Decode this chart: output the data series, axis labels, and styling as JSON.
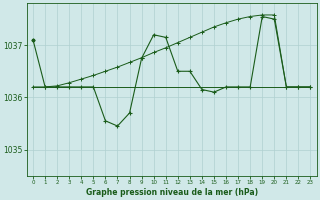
{
  "title": "Graphe pression niveau de la mer (hPa)",
  "bg": "#d0e8e8",
  "grid_color": "#b0d0d0",
  "lc": "#1a5c1a",
  "xlim": [
    -0.5,
    23.5
  ],
  "ylim": [
    1034.5,
    1037.8
  ],
  "yticks": [
    1035,
    1036,
    1037
  ],
  "xticks": [
    0,
    1,
    2,
    3,
    4,
    5,
    6,
    7,
    8,
    9,
    10,
    11,
    12,
    13,
    14,
    15,
    16,
    17,
    18,
    19,
    20,
    21,
    22,
    23
  ],
  "s1x": [
    0,
    1,
    2,
    3,
    4,
    5,
    6,
    7,
    8,
    9,
    10,
    11,
    12,
    13,
    14,
    15,
    16,
    17,
    18,
    19,
    20,
    21,
    22,
    23
  ],
  "s1y": [
    1036.2,
    1036.2,
    1036.2,
    1036.2,
    1036.2,
    1036.2,
    1036.2,
    1036.2,
    1036.2,
    1036.2,
    1036.2,
    1036.2,
    1036.2,
    1036.2,
    1036.2,
    1036.2,
    1036.2,
    1036.2,
    1036.2,
    1036.2,
    1036.2,
    1036.2,
    1036.2,
    1036.2
  ],
  "s2x": [
    0,
    1,
    2,
    3,
    4,
    5,
    6,
    7,
    8,
    9,
    10,
    11,
    12,
    13,
    14,
    15,
    16,
    17,
    18,
    19,
    20,
    21,
    22,
    23
  ],
  "s2y": [
    1036.2,
    1036.2,
    1036.22,
    1036.28,
    1036.35,
    1036.42,
    1036.5,
    1036.58,
    1036.67,
    1036.76,
    1036.86,
    1036.95,
    1037.05,
    1037.15,
    1037.25,
    1037.35,
    1037.43,
    1037.5,
    1037.55,
    1037.58,
    1037.58,
    1036.2,
    1036.2,
    1036.2
  ],
  "s3x": [
    0,
    1,
    2,
    3,
    4,
    5,
    6,
    7,
    8,
    9,
    10,
    11,
    12,
    13,
    14,
    15,
    16,
    17,
    18,
    19,
    20,
    21,
    22,
    23
  ],
  "s3y": [
    1037.1,
    1036.2,
    1036.2,
    1036.2,
    1036.2,
    1036.2,
    1035.55,
    1035.45,
    1035.7,
    1036.75,
    1037.2,
    1037.15,
    1036.5,
    1036.5,
    1036.15,
    1036.1,
    1036.2,
    1036.2,
    1036.2,
    1037.55,
    1037.5,
    1036.2,
    1036.2,
    1036.2
  ]
}
